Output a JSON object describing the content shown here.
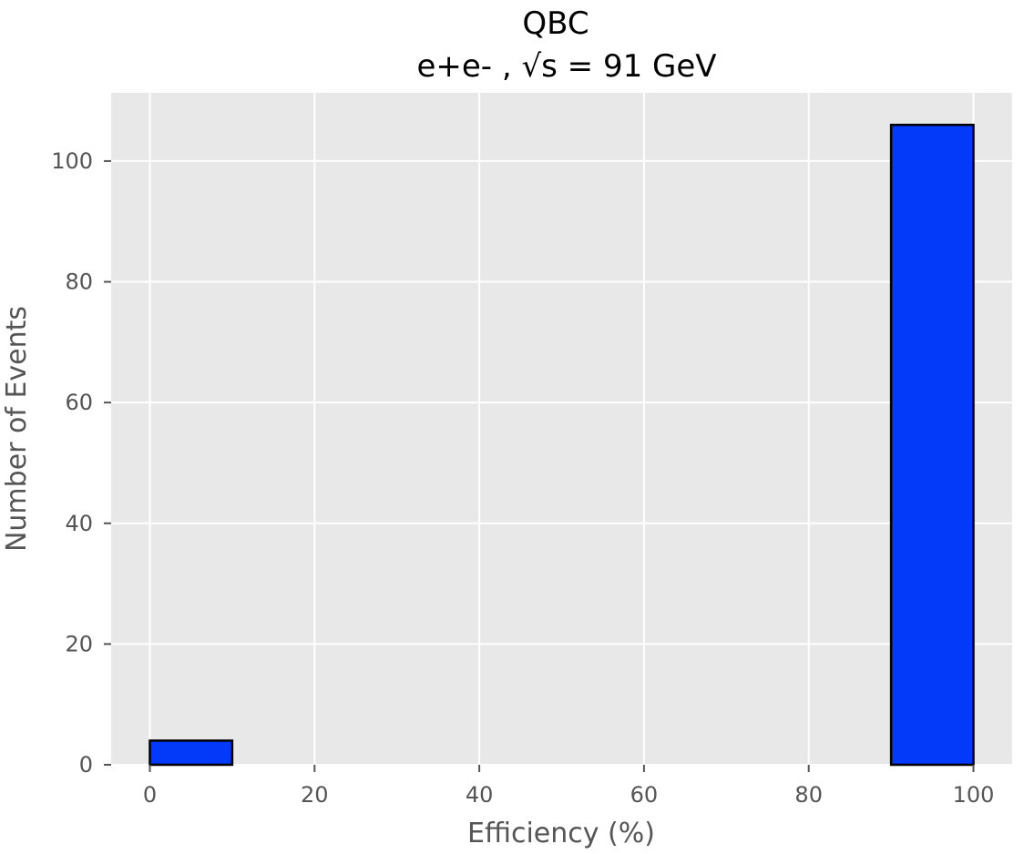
{
  "chart_data": {
    "type": "bar",
    "title": "QBC",
    "subtitle": "e+e- , √s = 91 GeV",
    "xlabel": "Efficiency (%)",
    "ylabel": "Number of Events",
    "bins": [
      {
        "x_start": 0,
        "x_end": 10,
        "value": 4
      },
      {
        "x_start": 90,
        "x_end": 100,
        "value": 106
      }
    ],
    "xlim": [
      -4.7,
      104.7
    ],
    "ylim": [
      0,
      111.3
    ],
    "xticks": [
      0,
      20,
      40,
      60,
      80,
      100
    ],
    "yticks": [
      0,
      20,
      40,
      60,
      80,
      100
    ],
    "grid": true,
    "colors": {
      "bar_fill": "#0339F8",
      "bar_edge": "#000000",
      "plot_background": "#E8E8E8",
      "grid": "#FFFFFF"
    }
  }
}
